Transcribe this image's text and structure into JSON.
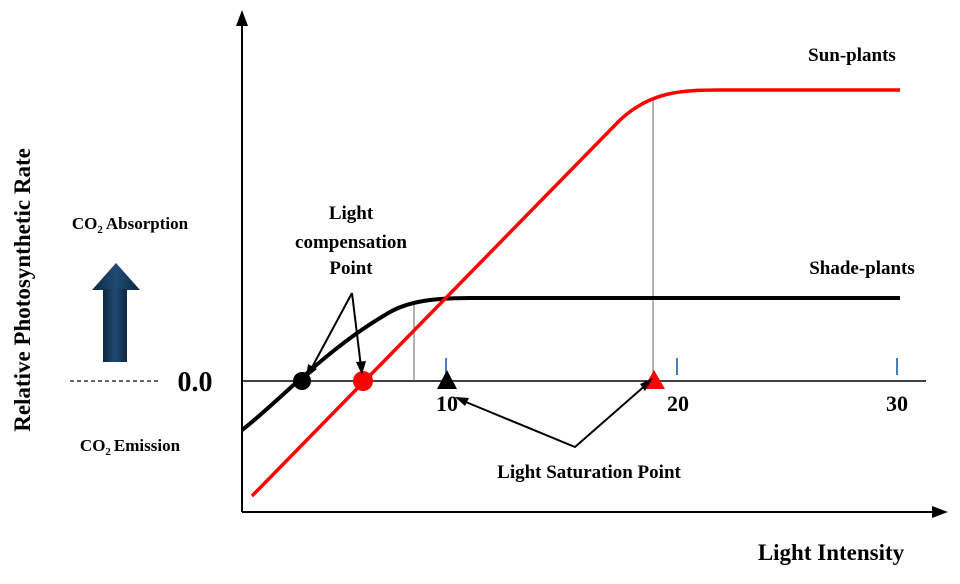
{
  "chart_data": {
    "type": "line",
    "x_label": "Light Intensity",
    "y_label": "Relative Photosynthetic Rate",
    "x_ticks": [
      "10",
      "20",
      "30"
    ],
    "y_zero_label": "0.0",
    "series": [
      {
        "name": "Sun-plants",
        "color": "#ff0000",
        "compensation_point_x": 5,
        "saturation_point_x": 19,
        "points": [
          [
            0,
            -1.0
          ],
          [
            5,
            0.0
          ],
          [
            17.5,
            2.6
          ],
          [
            18.5,
            2.72
          ],
          [
            19.5,
            2.75
          ],
          [
            30,
            2.75
          ]
        ]
      },
      {
        "name": "Shade-plants",
        "color": "#000000",
        "compensation_point_x": 2.5,
        "saturation_point_x": 10,
        "points": [
          [
            0,
            -0.45
          ],
          [
            2.5,
            0.0
          ],
          [
            5,
            0.35
          ],
          [
            7,
            0.7
          ],
          [
            8.5,
            0.8
          ],
          [
            10,
            0.82
          ],
          [
            30,
            0.82
          ]
        ]
      }
    ],
    "annotations": {
      "compensation": "Light compensation Point",
      "compensation_lines": [
        "Light",
        "compensation",
        "Point"
      ],
      "saturation": "Light Saturation Point",
      "absorption_label": "Absorption",
      "absorption_prefix": "CO",
      "absorption_sub": "2",
      "emission_label": "Emission",
      "emission_prefix": "CO",
      "emission_sub": "2"
    }
  }
}
